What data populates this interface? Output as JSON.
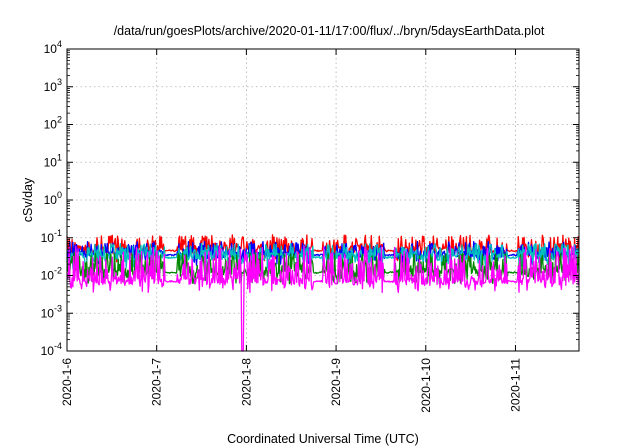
{
  "chart_data": {
    "type": "line",
    "title": "/data/run/goesPlots/archive/2020-01-11/17:00/flux/../bryn/5daysEarthData.plot",
    "xlabel": "Coordinated Universal Time (UTC)",
    "ylabel": "cSv/day",
    "y_scale": "log",
    "ylim": [
      0.0001,
      10000
    ],
    "y_ticks": [
      {
        "value": 0.0001,
        "base": "10",
        "exp": "-4"
      },
      {
        "value": 0.001,
        "base": "10",
        "exp": "-3"
      },
      {
        "value": 0.01,
        "base": "10",
        "exp": "-2"
      },
      {
        "value": 0.1,
        "base": "10",
        "exp": "-1"
      },
      {
        "value": 1,
        "base": "10",
        "exp": "0"
      },
      {
        "value": 10,
        "base": "10",
        "exp": "1"
      },
      {
        "value": 100,
        "base": "10",
        "exp": "2"
      },
      {
        "value": 1000,
        "base": "10",
        "exp": "3"
      },
      {
        "value": 10000,
        "base": "10",
        "exp": "4"
      }
    ],
    "x_type": "date",
    "xlim": [
      "2020-01-06T00:00",
      "2020-01-11T17:00"
    ],
    "x_ticks": [
      "2020-1-6",
      "2020-1-7",
      "2020-1-8",
      "2020-1-9",
      "2020-1-10",
      "2020-1-11"
    ],
    "x_tick_dates": [
      "2020-01-06",
      "2020-01-07",
      "2020-01-08",
      "2020-01-09",
      "2020-01-10",
      "2020-01-11"
    ],
    "grid": true,
    "legend": "none",
    "series": [
      {
        "color": "#ff0000",
        "baseline": 0.045,
        "spike_max": 0.12
      },
      {
        "color": "#0000ff",
        "baseline": 0.035,
        "spike_max": 0.08
      },
      {
        "color": "#00bfbf",
        "baseline": 0.03,
        "spike_max": 0.07
      },
      {
        "color": "#008800",
        "baseline": 0.012,
        "spike_max": 0.04
      },
      {
        "color": "#ff00ff",
        "baseline": 0.007,
        "spike_max": 0.06,
        "dropout_min": 0.0001
      }
    ]
  }
}
